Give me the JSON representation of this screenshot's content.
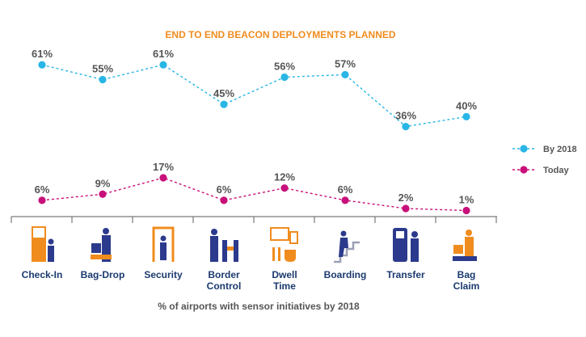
{
  "chart_data": {
    "type": "line",
    "title": "END TO END BEACON DEPLOYMENTS PLANNED",
    "xlabel": "% of airports with sensor initiatives by 2018",
    "ylabel": "",
    "categories": [
      "Check-In",
      "Bag-Drop",
      "Security",
      "Border Control",
      "Dwell Time",
      "Boarding",
      "Transfer",
      "Bag Claim"
    ],
    "series": [
      {
        "name": "By 2018",
        "color": "#29b6e6",
        "values": [
          61,
          55,
          61,
          45,
          56,
          57,
          36,
          40
        ]
      },
      {
        "name": "Today",
        "color": "#c8107a",
        "values": [
          6,
          9,
          17,
          6,
          12,
          6,
          2,
          1
        ]
      }
    ],
    "value_suffix": "%",
    "legend_position": "right",
    "line_style": "dashed",
    "grid": false,
    "colors": {
      "title": "#f08c1e",
      "label_text": "#555555",
      "category_text": "#1b3a6e",
      "icon_navy": "#2b3a8c",
      "icon_orange": "#f08c1e"
    },
    "icons": [
      "check-in-kiosk-icon",
      "bag-drop-icon",
      "security-gate-icon",
      "border-control-icon",
      "dwell-time-icon",
      "boarding-stairs-icon",
      "transfer-kiosk-icon",
      "bag-claim-icon"
    ]
  }
}
